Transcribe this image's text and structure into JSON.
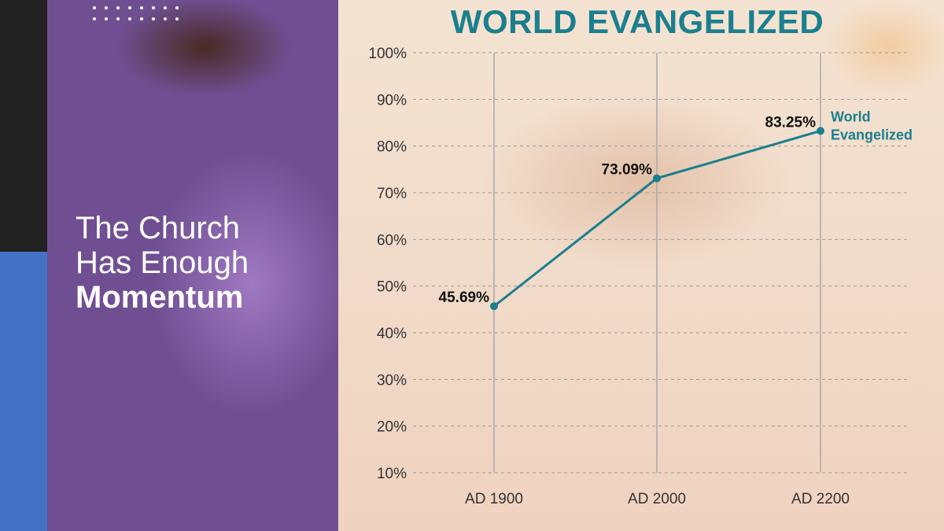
{
  "slide": {
    "headline_line1": "The Church",
    "headline_line2": "Has Enough",
    "headline_line3": "Momentum"
  },
  "colors": {
    "accent": "#1a7f8e",
    "sidebar_dark": "#222222",
    "sidebar_blue": "#4472c4"
  },
  "chart_data": {
    "type": "line",
    "title": "WORLD EVANGELIZED",
    "xlabel": "",
    "ylabel": "",
    "categories": [
      "AD 1900",
      "AD 2000",
      "AD 2200"
    ],
    "series": [
      {
        "name": "World Evangelized",
        "values": [
          45.69,
          73.09,
          83.25
        ]
      }
    ],
    "data_labels": [
      "45.69%",
      "73.09%",
      "83.25%"
    ],
    "y_ticks": [
      "10%",
      "20%",
      "30%",
      "40%",
      "50%",
      "60%",
      "70%",
      "80%",
      "90%",
      "100%"
    ],
    "ylim": [
      10,
      100
    ],
    "grid": "horizontal dashed, vertical solid at categories",
    "legend": "end-of-line label"
  }
}
